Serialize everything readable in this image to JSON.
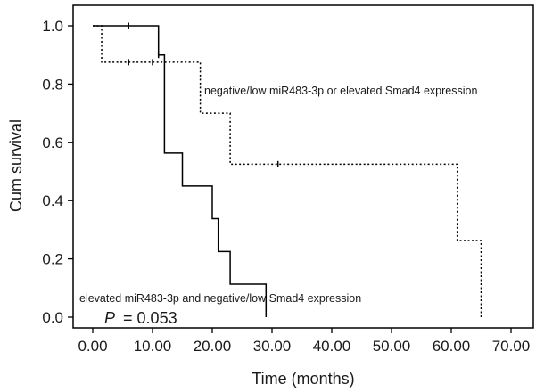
{
  "chart_data": {
    "type": "line",
    "title": "",
    "xlabel": "Time (months)",
    "ylabel": "Cum survival",
    "xlim": [
      0,
      70
    ],
    "ylim": [
      0,
      1.0
    ],
    "x_ticks": [
      "0.00",
      "10.00",
      "20.00",
      "30.00",
      "40.00",
      "50.00",
      "60.00",
      "70.00"
    ],
    "y_ticks": [
      "0.0",
      "0.2",
      "0.4",
      "0.6",
      "0.8",
      "1.0"
    ],
    "grid": false,
    "legend": "none",
    "series": [
      {
        "label": "elevated miR483-3p and negative/low Smad4 expression",
        "line_style": "solid",
        "color": "#000000",
        "steps": [
          {
            "t": 0,
            "s": 1.0
          },
          {
            "t": 11,
            "s": 0.9
          },
          {
            "t": 12,
            "s": 0.563
          },
          {
            "t": 15,
            "s": 0.45
          },
          {
            "t": 20,
            "s": 0.338
          },
          {
            "t": 21,
            "s": 0.225
          },
          {
            "t": 23,
            "s": 0.113
          },
          {
            "t": 29,
            "s": 0.0
          }
        ],
        "end_time": 29,
        "censored": [
          {
            "t": 6,
            "s": 1.0
          },
          {
            "t": 11,
            "s": 0.9
          }
        ]
      },
      {
        "label": "negative/low miR483-3p or elevated Smad4 expression",
        "line_style": "dotted",
        "color": "#000000",
        "steps": [
          {
            "t": 0,
            "s": 1.0
          },
          {
            "t": 1.5,
            "s": 0.875
          },
          {
            "t": 18,
            "s": 0.7
          },
          {
            "t": 23,
            "s": 0.525
          },
          {
            "t": 61,
            "s": 0.263
          },
          {
            "t": 65,
            "s": 0.0
          }
        ],
        "end_time": 65,
        "censored": [
          {
            "t": 6,
            "s": 0.875
          },
          {
            "t": 10,
            "s": 0.875
          },
          {
            "t": 31,
            "s": 0.525
          }
        ]
      }
    ],
    "annotations": {
      "p_label": "P",
      "p_value": "= 0.053"
    }
  }
}
